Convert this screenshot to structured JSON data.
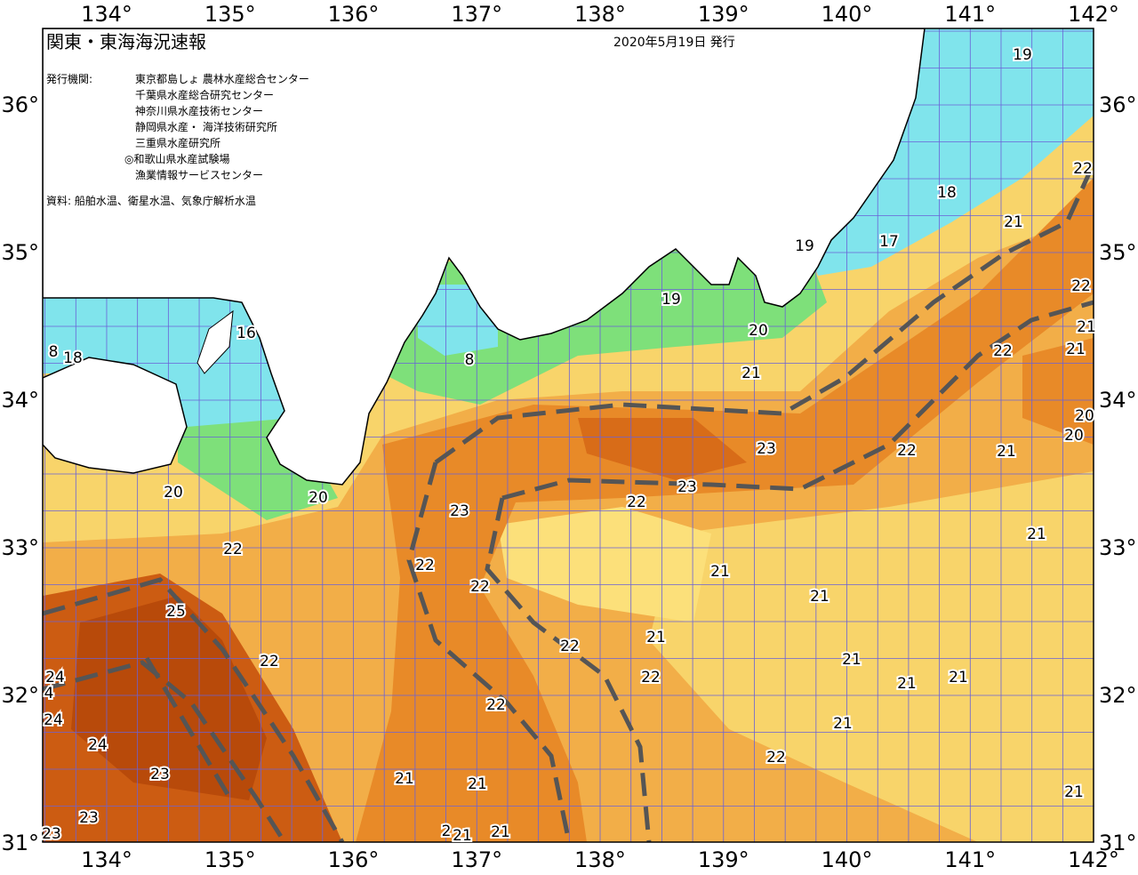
{
  "header": {
    "title": "関東・東海海況速報",
    "date": "2020年5月19日 発行",
    "issuer_label": "発行機関:",
    "issuers": [
      "東京都島しょ 農林水産総合センター",
      "千葉県水産総合研究センター",
      "神奈川県水産技術センター",
      "静岡県水産・ 海洋技術研究所",
      "三重県水産研究所",
      "◎和歌山県水産試験場",
      "漁業情報サービスセンター"
    ],
    "source": "資料: 船舶水温、衛星水温、気象庁解析水温"
  },
  "axes": {
    "lon_labels": [
      "134°",
      "135°",
      "136°",
      "137°",
      "138°",
      "139°",
      "140°",
      "141°",
      "142°"
    ],
    "lat_labels": [
      "36°",
      "35°",
      "34°",
      "33°",
      "32°",
      "31°"
    ]
  },
  "contour_labels": [
    "19",
    "18",
    "17",
    "19",
    "21",
    "22",
    "22",
    "21",
    "21",
    "22",
    "20",
    "20",
    "21",
    "22",
    "23",
    "23",
    "22",
    "19",
    "20",
    "21",
    "8",
    "16",
    "8",
    "18",
    "20",
    "20",
    "23",
    "22",
    "22",
    "22",
    "21",
    "21",
    "21",
    "25",
    "22",
    "21",
    "22",
    "21",
    "21",
    "21",
    "22",
    "24",
    "4",
    "24",
    "24",
    "22",
    "21",
    "22",
    "23",
    "21",
    "21",
    "21",
    "23",
    "23",
    "2",
    "21",
    "21"
  ]
}
